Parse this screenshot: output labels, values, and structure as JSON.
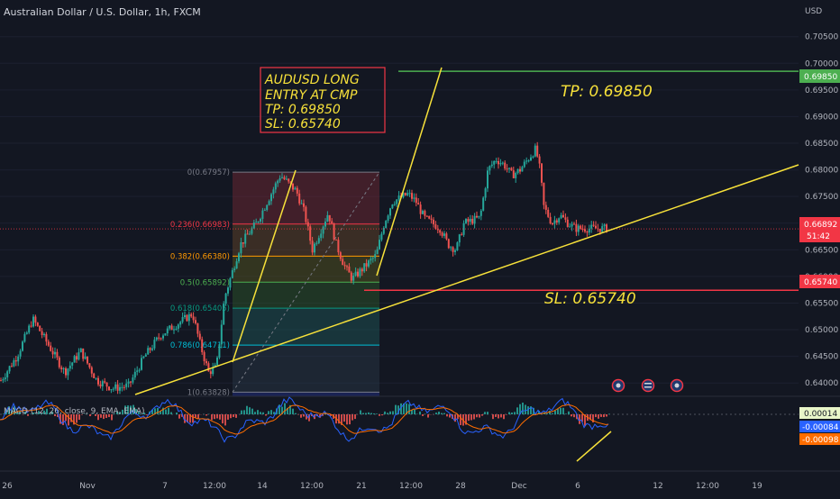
{
  "header": {
    "symbol_title": "Australian Dollar / U.S. Dollar, 1h, FXCM",
    "currency": "USD"
  },
  "colors": {
    "background": "#131722",
    "up": "#26a69a",
    "down": "#ef5350",
    "yellow": "#f7e13a",
    "tp_green": "#4caf50",
    "sl_red": "#f23645",
    "macd_line": "#2962ff",
    "signal_line": "#ff6d00"
  },
  "annotations": {
    "trade_box": [
      "AUDUSD LONG",
      "ENTRY AT CMP",
      "TP: 0.69850",
      "SL: 0.65740"
    ],
    "tp_text": "TP: 0.69850",
    "sl_text": "SL: 0.65740"
  },
  "price_scale": {
    "ticks": [
      "0.70500",
      "0.70000",
      "0.69500",
      "0.69000",
      "0.68500",
      "0.68000",
      "0.67500",
      "0.67000",
      "0.66500",
      "0.66000",
      "0.65500",
      "0.65000",
      "0.64500",
      "0.64000"
    ],
    "tp_label": "0.69850",
    "current_price": "0.66892",
    "countdown": "51:42",
    "sl_label": "0.65740"
  },
  "macd": {
    "title": "MACD (12, 26, close, 9, EMA, EMA)",
    "values": [
      "0.00014",
      "-0.00084",
      "-0.00098"
    ]
  },
  "time_axis": [
    "26",
    "Nov",
    "7",
    "12:00",
    "14",
    "12:00",
    "21",
    "12:00",
    "28",
    "Dec",
    "6",
    "12",
    "12:00",
    "19"
  ],
  "chart_data": {
    "type": "candlestick",
    "title": "Australian Dollar / U.S. Dollar, 1h, FXCM",
    "ylabel": "USD",
    "ylim": [
      0.6375,
      0.7085
    ],
    "close_path": [
      [
        0.0,
        0.6405
      ],
      [
        0.02,
        0.645
      ],
      [
        0.04,
        0.652
      ],
      [
        0.06,
        0.647
      ],
      [
        0.08,
        0.642
      ],
      [
        0.1,
        0.646
      ],
      [
        0.12,
        0.6405
      ],
      [
        0.14,
        0.639
      ],
      [
        0.16,
        0.6395
      ],
      [
        0.18,
        0.645
      ],
      [
        0.2,
        0.649
      ],
      [
        0.22,
        0.651
      ],
      [
        0.24,
        0.653
      ],
      [
        0.25,
        0.647
      ],
      [
        0.26,
        0.642
      ],
      [
        0.27,
        0.643
      ],
      [
        0.28,
        0.656
      ],
      [
        0.3,
        0.666
      ],
      [
        0.32,
        0.67
      ],
      [
        0.34,
        0.676
      ],
      [
        0.35,
        0.679
      ],
      [
        0.37,
        0.676
      ],
      [
        0.38,
        0.672
      ],
      [
        0.39,
        0.665
      ],
      [
        0.41,
        0.672
      ],
      [
        0.42,
        0.666
      ],
      [
        0.43,
        0.662
      ],
      [
        0.44,
        0.6595
      ],
      [
        0.45,
        0.661
      ],
      [
        0.47,
        0.664
      ],
      [
        0.48,
        0.67
      ],
      [
        0.49,
        0.674
      ],
      [
        0.51,
        0.6755
      ],
      [
        0.52,
        0.674
      ],
      [
        0.53,
        0.671
      ],
      [
        0.55,
        0.669
      ],
      [
        0.56,
        0.666
      ],
      [
        0.57,
        0.665
      ],
      [
        0.58,
        0.67
      ],
      [
        0.6,
        0.671
      ],
      [
        0.61,
        0.68
      ],
      [
        0.62,
        0.682
      ],
      [
        0.63,
        0.681
      ],
      [
        0.64,
        0.679
      ],
      [
        0.65,
        0.68
      ],
      [
        0.66,
        0.682
      ],
      [
        0.67,
        0.684
      ],
      [
        0.675,
        0.68
      ],
      [
        0.68,
        0.673
      ],
      [
        0.69,
        0.67
      ],
      [
        0.7,
        0.6715
      ],
      [
        0.71,
        0.67
      ],
      [
        0.72,
        0.669
      ]
    ],
    "fibonacci": [
      {
        "label": "0(0.67957)",
        "level": 0.67957
      },
      {
        "label": "0.236(0.66983)",
        "level": 0.66983
      },
      {
        "label": "0.382(0.66380)",
        "level": 0.6638
      },
      {
        "label": "0.5(0.65892)",
        "level": 0.65892
      },
      {
        "label": "0.618(0.65405)",
        "level": 0.65405
      },
      {
        "label": "0.786(0.64711)",
        "level": 0.64711
      },
      {
        "label": "1(0.63828)",
        "level": 0.63828
      }
    ],
    "take_profit": 0.6985,
    "stop_loss": 0.6574,
    "current_price": 0.66892
  }
}
